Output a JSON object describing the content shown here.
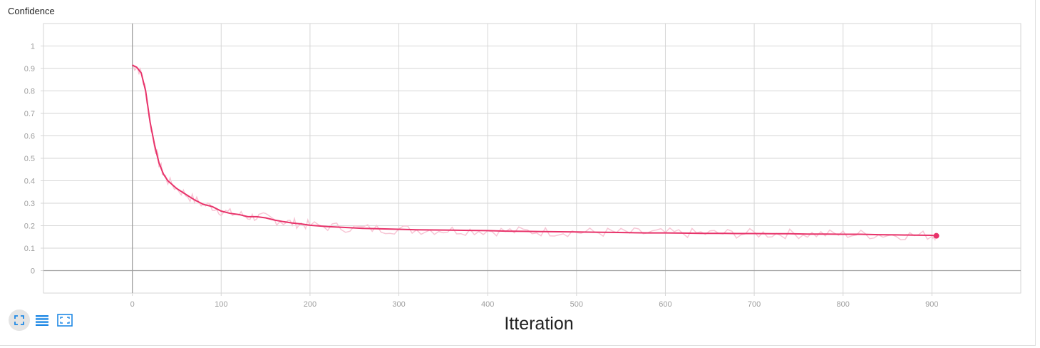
{
  "title": "Confidence",
  "colors": {
    "line": "#e8336a",
    "raw": "#f7c6d5",
    "grid": "#d6d6d6",
    "axis": "#9e9e9e",
    "icon": "#1e88e5"
  },
  "toolbar": {
    "icons": [
      "fit-domain-icon",
      "log-scale-icon",
      "expand-icon"
    ]
  },
  "chart_data": {
    "type": "line",
    "title": "Confidence",
    "xlabel": "Itteration",
    "ylabel": "",
    "xlim": [
      -100,
      1000
    ],
    "ylim": [
      -0.1,
      1.1
    ],
    "xticks": [
      0,
      100,
      200,
      300,
      400,
      500,
      600,
      700,
      800,
      900
    ],
    "yticks": [
      0,
      0.1,
      0.2,
      0.3,
      0.4,
      0.5,
      0.6,
      0.7,
      0.8,
      0.9,
      1
    ],
    "xtick_labels": [
      "0",
      "100",
      "200",
      "300",
      "400",
      "500",
      "600",
      "700",
      "800",
      "900"
    ],
    "ytick_labels": [
      "0",
      "0.1",
      "0.2",
      "0.3",
      "0.4",
      "0.5",
      "0.6",
      "0.7",
      "0.8",
      "0.9",
      "1"
    ],
    "grid": true,
    "series": [
      {
        "x": [
          0,
          5,
          10,
          15,
          20,
          25,
          30,
          35,
          40,
          50,
          60,
          70,
          80,
          90,
          100,
          110,
          120,
          130,
          140,
          150,
          160,
          170,
          180,
          190,
          200,
          220,
          240,
          260,
          280,
          300,
          320,
          340,
          360,
          380,
          400,
          420,
          440,
          460,
          480,
          500,
          520,
          540,
          560,
          580,
          600,
          620,
          640,
          660,
          680,
          700,
          720,
          740,
          760,
          780,
          800,
          820,
          840,
          860,
          880,
          900,
          905
        ],
        "y": [
          0.915,
          0.905,
          0.88,
          0.8,
          0.66,
          0.56,
          0.48,
          0.43,
          0.4,
          0.365,
          0.34,
          0.315,
          0.295,
          0.285,
          0.265,
          0.255,
          0.25,
          0.24,
          0.24,
          0.235,
          0.225,
          0.218,
          0.212,
          0.208,
          0.202,
          0.196,
          0.192,
          0.188,
          0.186,
          0.184,
          0.182,
          0.181,
          0.18,
          0.179,
          0.178,
          0.176,
          0.175,
          0.174,
          0.173,
          0.172,
          0.171,
          0.17,
          0.169,
          0.168,
          0.168,
          0.167,
          0.166,
          0.166,
          0.165,
          0.165,
          0.164,
          0.164,
          0.163,
          0.163,
          0.162,
          0.162,
          0.16,
          0.159,
          0.158,
          0.157,
          0.155
        ]
      }
    ]
  }
}
